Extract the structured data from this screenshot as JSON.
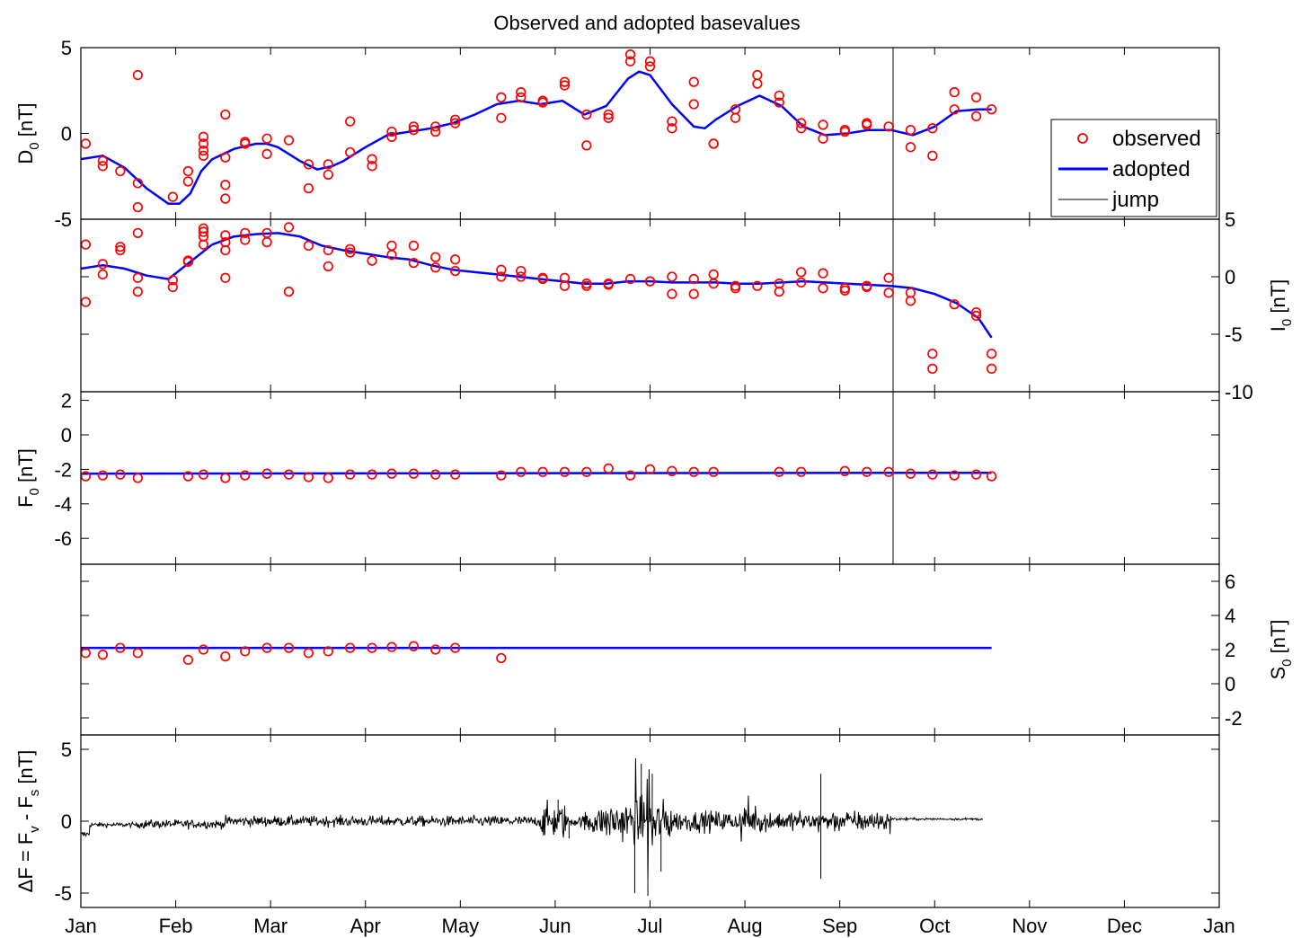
{
  "title": "Observed and adopted basevalues",
  "colors": {
    "observed": "#ff0000",
    "adopted": "#0000ff",
    "jump": "#808080",
    "delta": "#000000"
  },
  "legend": {
    "placement": "upper-right of top panel",
    "observed": "observed",
    "adopted": "adopted",
    "jump": "jump"
  },
  "x_ticks": [
    "Jan",
    "Feb",
    "Mar",
    "Apr",
    "May",
    "Jun",
    "Jul",
    "Aug",
    "Sep",
    "Oct",
    "Nov",
    "Dec",
    "Jan"
  ],
  "chart_data": [
    {
      "type": "scatter",
      "id": "D",
      "ylabel_main": "D",
      "ylabel_sub": "0",
      "ylabel_unit": " [nT]",
      "ylim": [
        -5,
        5
      ],
      "yticks": [
        -5,
        0,
        5
      ],
      "ytick_side": "left",
      "observed": [
        [
          0.22,
          -0.6
        ],
        [
          1,
          -1.6
        ],
        [
          1,
          -1.9
        ],
        [
          1.8,
          -2.2
        ],
        [
          2.6,
          3.4
        ],
        [
          2.6,
          -2.9
        ],
        [
          2.6,
          -4.3
        ],
        [
          4.2,
          -3.7
        ],
        [
          4.9,
          -2.2
        ],
        [
          4.9,
          -2.8
        ],
        [
          5.6,
          -0.2
        ],
        [
          5.6,
          -0.6
        ],
        [
          5.6,
          -1.0
        ],
        [
          5.6,
          -1.3
        ],
        [
          6.6,
          1.1
        ],
        [
          6.6,
          -1.4
        ],
        [
          6.6,
          -3.0
        ],
        [
          6.6,
          -3.8
        ],
        [
          7.5,
          -0.5
        ],
        [
          7.5,
          -0.6
        ],
        [
          8.5,
          -0.3
        ],
        [
          8.5,
          -1.2
        ],
        [
          9.5,
          -0.4
        ],
        [
          10.4,
          -1.8
        ],
        [
          10.4,
          -3.2
        ],
        [
          11.3,
          -1.8
        ],
        [
          11.3,
          -2.4
        ],
        [
          12.3,
          0.7
        ],
        [
          12.3,
          -1.1
        ],
        [
          13.3,
          -1.5
        ],
        [
          13.3,
          -1.9
        ],
        [
          14.2,
          0.1
        ],
        [
          14.2,
          -0.2
        ],
        [
          15.2,
          0.4
        ],
        [
          15.2,
          0.2
        ],
        [
          16.2,
          0.4
        ],
        [
          16.2,
          0.1
        ],
        [
          17.1,
          0.8
        ],
        [
          17.1,
          0.6
        ],
        [
          19.2,
          2.1
        ],
        [
          19.2,
          0.9
        ],
        [
          20.1,
          2.4
        ],
        [
          20.1,
          2.1
        ],
        [
          21.1,
          1.9
        ],
        [
          21.1,
          1.8
        ],
        [
          22.1,
          3.0
        ],
        [
          22.1,
          2.8
        ],
        [
          23.1,
          1.1
        ],
        [
          23.1,
          -0.7
        ],
        [
          24.1,
          1.1
        ],
        [
          24.1,
          0.9
        ],
        [
          25.1,
          4.6
        ],
        [
          25.1,
          4.2
        ],
        [
          26,
          4.2
        ],
        [
          26,
          3.9
        ],
        [
          27,
          0.7
        ],
        [
          27,
          0.3
        ],
        [
          28,
          3.0
        ],
        [
          28,
          1.7
        ],
        [
          28.9,
          -0.6
        ],
        [
          28.9,
          -0.6
        ],
        [
          29.9,
          1.4
        ],
        [
          29.9,
          0.9
        ],
        [
          30.9,
          3.4
        ],
        [
          30.9,
          2.9
        ],
        [
          31.9,
          2.2
        ],
        [
          31.9,
          1.8
        ],
        [
          32.9,
          0.6
        ],
        [
          32.9,
          0.3
        ],
        [
          33.9,
          0.5
        ],
        [
          33.9,
          -0.3
        ],
        [
          34.9,
          0.2
        ],
        [
          34.9,
          0.1
        ],
        [
          35.9,
          0.5
        ],
        [
          35.9,
          0.6
        ],
        [
          36.9,
          0.4
        ],
        [
          37.9,
          0.2
        ],
        [
          37.9,
          -0.8
        ],
        [
          38.9,
          0.3
        ],
        [
          38.9,
          -1.3
        ],
        [
          39.9,
          2.4
        ],
        [
          39.9,
          1.4
        ],
        [
          40.9,
          2.1
        ],
        [
          40.9,
          1.0
        ],
        [
          41.6,
          1.4
        ]
      ],
      "adopted": [
        [
          0,
          -1.5
        ],
        [
          1,
          -1.3
        ],
        [
          2,
          -2.0
        ],
        [
          3,
          -3.2
        ],
        [
          4,
          -4.1
        ],
        [
          4.5,
          -4.1
        ],
        [
          5,
          -3.5
        ],
        [
          5.5,
          -2.2
        ],
        [
          6,
          -1.5
        ],
        [
          7,
          -0.9
        ],
        [
          8,
          -0.6
        ],
        [
          8.5,
          -0.6
        ],
        [
          9,
          -0.8
        ],
        [
          10,
          -1.6
        ],
        [
          10.8,
          -2.1
        ],
        [
          11.5,
          -1.9
        ],
        [
          12,
          -1.6
        ],
        [
          13,
          -0.8
        ],
        [
          14,
          -0.1
        ],
        [
          15,
          0.1
        ],
        [
          16,
          0.3
        ],
        [
          17,
          0.6
        ],
        [
          18,
          1.1
        ],
        [
          19,
          1.7
        ],
        [
          20,
          1.9
        ],
        [
          21,
          1.7
        ],
        [
          22,
          1.9
        ],
        [
          23,
          1.1
        ],
        [
          24,
          1.6
        ],
        [
          25,
          3.2
        ],
        [
          25.5,
          3.6
        ],
        [
          26,
          3.4
        ],
        [
          27,
          1.7
        ],
        [
          28,
          0.4
        ],
        [
          28.5,
          0.3
        ],
        [
          29,
          0.8
        ],
        [
          30,
          1.6
        ],
        [
          31,
          2.2
        ],
        [
          32,
          1.6
        ],
        [
          33,
          0.4
        ],
        [
          34,
          -0.1
        ],
        [
          35,
          0.0
        ],
        [
          36,
          0.2
        ],
        [
          37,
          0.2
        ],
        [
          38,
          -0.1
        ],
        [
          39,
          0.4
        ],
        [
          40,
          1.3
        ],
        [
          41,
          1.4
        ],
        [
          41.6,
          1.4
        ]
      ],
      "jump_x": 37.1
    },
    {
      "type": "scatter",
      "id": "I",
      "ylabel_main": "I",
      "ylabel_sub": "0",
      "ylabel_unit": " [nT]",
      "ylim": [
        -10,
        5
      ],
      "yticks": [
        -10,
        -5,
        0,
        5
      ],
      "ytick_side": "right",
      "observed": [
        [
          0.22,
          2.8
        ],
        [
          0.22,
          -2.2
        ],
        [
          1,
          1.1
        ],
        [
          1,
          0.2
        ],
        [
          1.8,
          2.6
        ],
        [
          1.8,
          2.3
        ],
        [
          2.6,
          3.8
        ],
        [
          2.6,
          -1.3
        ],
        [
          2.6,
          -0.1
        ],
        [
          4.2,
          -0.3
        ],
        [
          4.2,
          -0.9
        ],
        [
          4.9,
          1.4
        ],
        [
          4.9,
          1.3
        ],
        [
          5.6,
          3.9
        ],
        [
          5.6,
          4.2
        ],
        [
          5.6,
          3.5
        ],
        [
          5.6,
          2.8
        ],
        [
          6.6,
          3.6
        ],
        [
          6.6,
          3.0
        ],
        [
          6.6,
          2.3
        ],
        [
          6.6,
          -0.1
        ],
        [
          7.5,
          3.8
        ],
        [
          7.5,
          3.2
        ],
        [
          8.5,
          3.8
        ],
        [
          8.5,
          3.0
        ],
        [
          9.5,
          4.3
        ],
        [
          9.5,
          -1.3
        ],
        [
          10.4,
          2.7
        ],
        [
          11.3,
          2.3
        ],
        [
          11.3,
          0.9
        ],
        [
          12.3,
          2.4
        ],
        [
          12.3,
          2.1
        ],
        [
          13.3,
          1.4
        ],
        [
          14.2,
          2.7
        ],
        [
          14.2,
          1.9
        ],
        [
          15.2,
          2.7
        ],
        [
          15.2,
          1.2
        ],
        [
          16.2,
          1.7
        ],
        [
          16.2,
          0.8
        ],
        [
          17.1,
          1.5
        ],
        [
          17.1,
          0.5
        ],
        [
          19.2,
          0.6
        ],
        [
          19.2,
          0.0
        ],
        [
          20.1,
          0.5
        ],
        [
          20.1,
          0.0
        ],
        [
          21.1,
          -0.2
        ],
        [
          21.1,
          -0.1
        ],
        [
          22.1,
          -0.1
        ],
        [
          22.1,
          -0.8
        ],
        [
          23.1,
          -0.6
        ],
        [
          23.1,
          -0.8
        ],
        [
          24.1,
          -0.6
        ],
        [
          24.1,
          -0.7
        ],
        [
          25.1,
          -0.2
        ],
        [
          26,
          -0.4
        ],
        [
          26,
          -0.4
        ],
        [
          27,
          0.0
        ],
        [
          27,
          -1.5
        ],
        [
          28,
          -0.2
        ],
        [
          28,
          -1.5
        ],
        [
          28.9,
          0.2
        ],
        [
          28.9,
          -0.6
        ],
        [
          29.9,
          -0.8
        ],
        [
          29.9,
          -1.0
        ],
        [
          30.9,
          -0.8
        ],
        [
          31.9,
          -0.6
        ],
        [
          31.9,
          -1.3
        ],
        [
          32.9,
          0.4
        ],
        [
          32.9,
          -0.5
        ],
        [
          33.9,
          0.3
        ],
        [
          33.9,
          -1.0
        ],
        [
          34.9,
          -1.2
        ],
        [
          34.9,
          -1.0
        ],
        [
          35.9,
          -0.8
        ],
        [
          35.9,
          -0.9
        ],
        [
          36.9,
          -0.1
        ],
        [
          36.9,
          -1.4
        ],
        [
          37.9,
          -1.4
        ],
        [
          37.9,
          -2.1
        ],
        [
          38.9,
          -6.7
        ],
        [
          38.9,
          -8.0
        ],
        [
          39.9,
          -2.4
        ],
        [
          40.9,
          -3.1
        ],
        [
          40.9,
          -3.4
        ],
        [
          41.6,
          -6.7
        ],
        [
          41.6,
          -8.0
        ]
      ],
      "adopted": [
        [
          0,
          0.7
        ],
        [
          1,
          1.0
        ],
        [
          2,
          0.7
        ],
        [
          3,
          0.1
        ],
        [
          4,
          -0.2
        ],
        [
          5,
          1.3
        ],
        [
          6,
          2.8
        ],
        [
          7,
          3.5
        ],
        [
          8,
          3.7
        ],
        [
          9,
          3.8
        ],
        [
          10,
          3.5
        ],
        [
          11,
          2.7
        ],
        [
          12,
          2.3
        ],
        [
          13,
          2.0
        ],
        [
          14,
          1.7
        ],
        [
          15,
          1.5
        ],
        [
          16,
          1.0
        ],
        [
          17,
          0.6
        ],
        [
          18,
          0.4
        ],
        [
          19,
          0.2
        ],
        [
          20,
          0.0
        ],
        [
          21,
          -0.2
        ],
        [
          22,
          -0.4
        ],
        [
          23,
          -0.6
        ],
        [
          24,
          -0.6
        ],
        [
          25,
          -0.4
        ],
        [
          26,
          -0.4
        ],
        [
          27,
          -0.5
        ],
        [
          28,
          -0.5
        ],
        [
          29,
          -0.5
        ],
        [
          30,
          -0.6
        ],
        [
          31,
          -0.6
        ],
        [
          32,
          -0.5
        ],
        [
          33,
          -0.4
        ],
        [
          34,
          -0.5
        ],
        [
          35,
          -0.6
        ],
        [
          36,
          -0.7
        ],
        [
          37,
          -0.8
        ],
        [
          38,
          -1.0
        ],
        [
          39,
          -1.5
        ],
        [
          40,
          -2.3
        ],
        [
          41,
          -3.6
        ],
        [
          41.6,
          -5.3
        ]
      ],
      "jump_x": 37.1
    },
    {
      "type": "scatter",
      "id": "F",
      "ylabel_main": "F",
      "ylabel_sub": "0",
      "ylabel_unit": " [nT]",
      "ylim": [
        -7.5,
        2.5
      ],
      "yticks": [
        -6,
        -4,
        -2,
        0,
        2
      ],
      "ytick_side": "left",
      "observed": [
        [
          0.22,
          -2.4
        ],
        [
          1,
          -2.35
        ],
        [
          1.8,
          -2.3
        ],
        [
          2.6,
          -2.5
        ],
        [
          4.9,
          -2.4
        ],
        [
          5.6,
          -2.3
        ],
        [
          6.6,
          -2.5
        ],
        [
          7.5,
          -2.35
        ],
        [
          8.5,
          -2.25
        ],
        [
          9.5,
          -2.3
        ],
        [
          10.4,
          -2.45
        ],
        [
          11.3,
          -2.5
        ],
        [
          12.3,
          -2.3
        ],
        [
          13.3,
          -2.3
        ],
        [
          14.2,
          -2.25
        ],
        [
          15.2,
          -2.25
        ],
        [
          16.2,
          -2.3
        ],
        [
          17.1,
          -2.3
        ],
        [
          19.2,
          -2.35
        ],
        [
          20.1,
          -2.15
        ],
        [
          21.1,
          -2.15
        ],
        [
          22.1,
          -2.15
        ],
        [
          23.1,
          -2.15
        ],
        [
          24.1,
          -1.95
        ],
        [
          25.1,
          -2.35
        ],
        [
          26,
          -2.0
        ],
        [
          27,
          -2.1
        ],
        [
          28,
          -2.15
        ],
        [
          28.9,
          -2.15
        ],
        [
          31.9,
          -2.15
        ],
        [
          32.9,
          -2.15
        ],
        [
          34.9,
          -2.1
        ],
        [
          35.9,
          -2.15
        ],
        [
          36.9,
          -2.15
        ],
        [
          37.9,
          -2.25
        ],
        [
          38.9,
          -2.3
        ],
        [
          39.9,
          -2.35
        ],
        [
          40.9,
          -2.3
        ],
        [
          41.6,
          -2.4
        ]
      ],
      "adopted": [
        [
          0,
          -2.25
        ],
        [
          41.6,
          -2.2
        ]
      ],
      "jump_x": 37.1
    },
    {
      "type": "scatter",
      "id": "S",
      "ylabel_main": "S",
      "ylabel_sub": "0",
      "ylabel_unit": " [nT]",
      "ylim": [
        -3,
        7
      ],
      "yticks": [
        -2,
        0,
        2,
        4,
        6
      ],
      "ytick_side": "right",
      "observed": [
        [
          0.22,
          1.8
        ],
        [
          1,
          1.7
        ],
        [
          1.8,
          2.1
        ],
        [
          2.6,
          1.8
        ],
        [
          4.9,
          1.4
        ],
        [
          5.6,
          2.0
        ],
        [
          6.6,
          1.6
        ],
        [
          7.5,
          1.9
        ],
        [
          8.5,
          2.1
        ],
        [
          9.5,
          2.1
        ],
        [
          10.4,
          1.8
        ],
        [
          11.3,
          1.9
        ],
        [
          12.3,
          2.1
        ],
        [
          13.3,
          2.1
        ],
        [
          14.2,
          2.15
        ],
        [
          15.2,
          2.2
        ],
        [
          16.2,
          2.0
        ],
        [
          17.1,
          2.1
        ],
        [
          19.2,
          1.5
        ]
      ],
      "adopted": [
        [
          0,
          2.1
        ],
        [
          41.6,
          2.1
        ]
      ]
    },
    {
      "type": "line",
      "id": "dF",
      "ylabel_text": "ΔF = F",
      "ylabel_sub1": "v",
      "ylabel_mid": " - F",
      "ylabel_sub2": "s",
      "ylabel_unit": " [nT]",
      "ylim": [
        -6,
        6
      ],
      "yticks": [
        -5,
        0,
        5
      ],
      "ytick_side": "left",
      "x_range": [
        0,
        41.2
      ]
    }
  ]
}
